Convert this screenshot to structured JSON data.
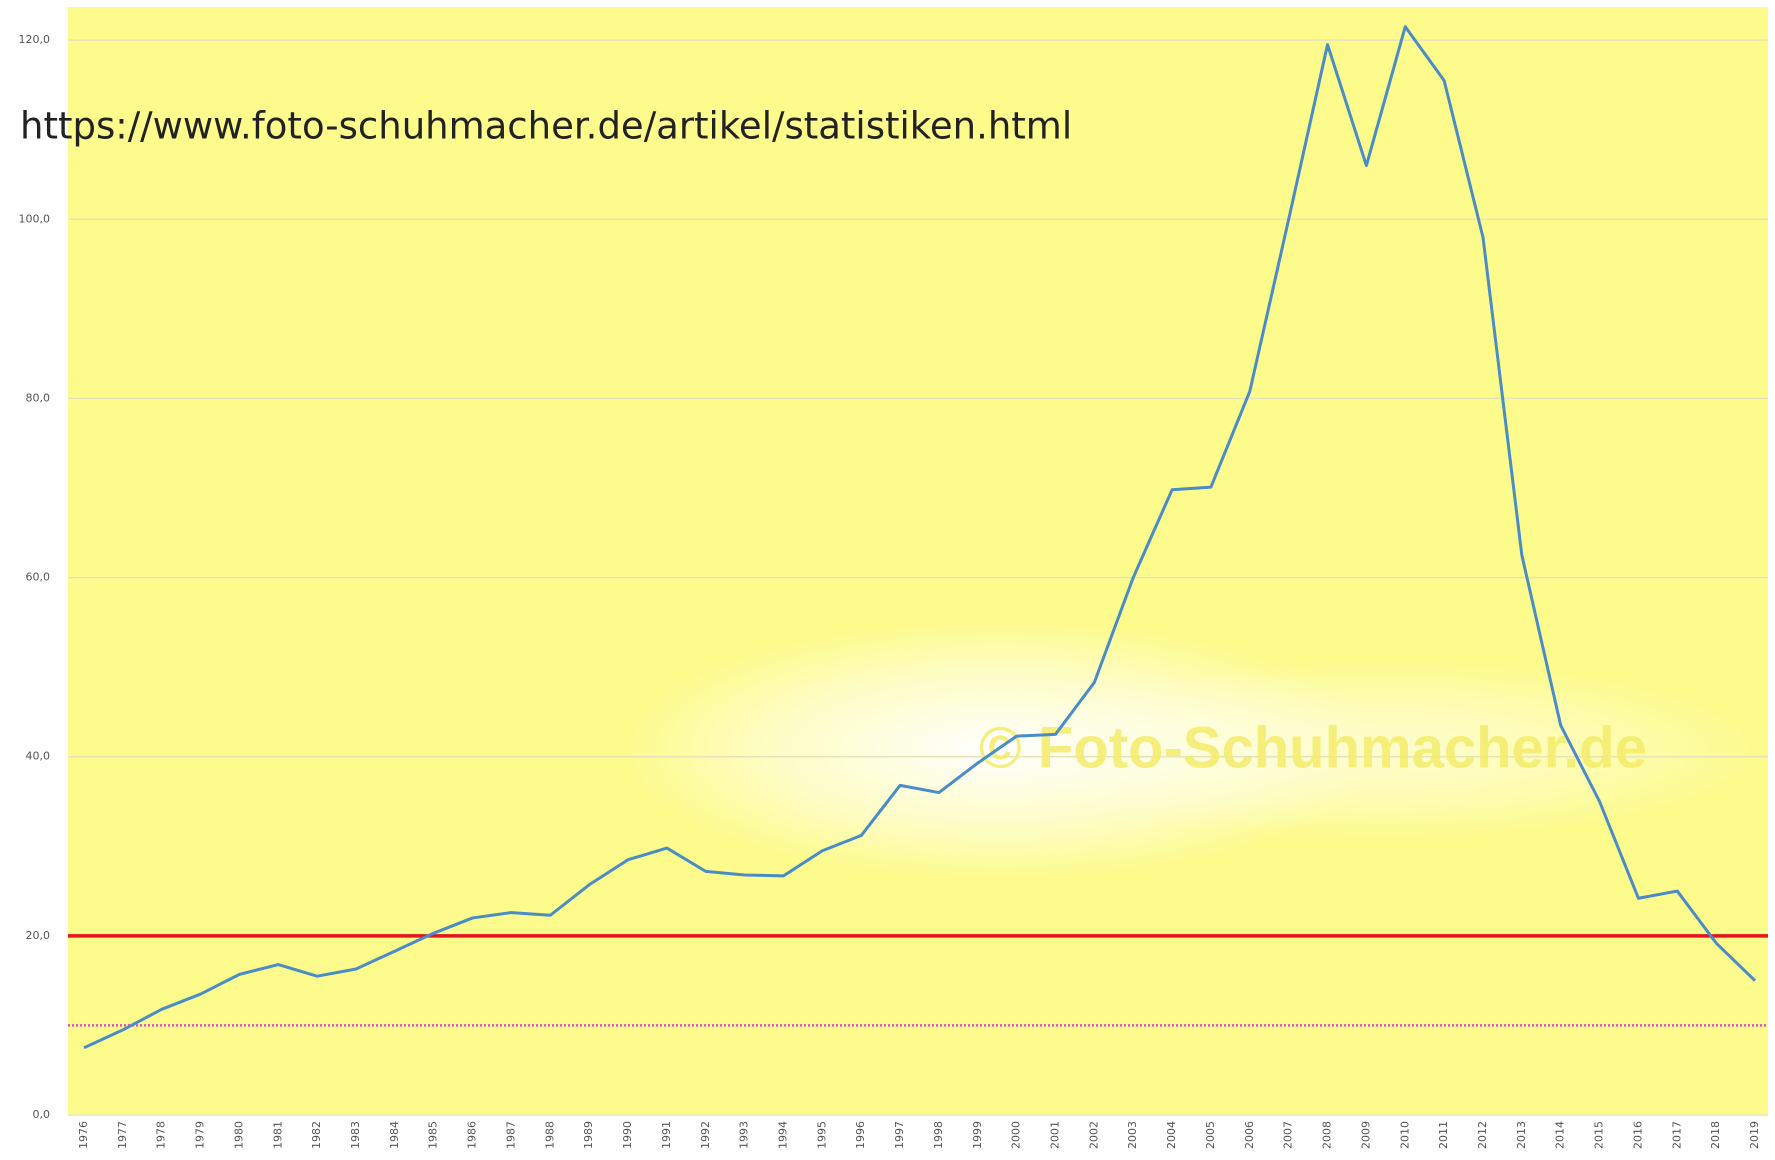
{
  "chart_data": {
    "type": "line",
    "categories": [
      "1976",
      "1977",
      "1978",
      "1979",
      "1980",
      "1981",
      "1982",
      "1983",
      "1984",
      "1985",
      "1986",
      "1987",
      "1988",
      "1989",
      "1990",
      "1991",
      "1992",
      "1993",
      "1994",
      "1995",
      "1996",
      "1997",
      "1998",
      "1999",
      "2000",
      "2001",
      "2002",
      "2003",
      "2004",
      "2005",
      "2006",
      "2007",
      "2008",
      "2009",
      "2010",
      "2011",
      "2012",
      "2013",
      "2014",
      "2015",
      "2016",
      "2017",
      "2018",
      "2019"
    ],
    "series": [
      {
        "color": "#4a8cc6",
        "values": [
          7.5,
          9.5,
          11.8,
          13.5,
          15.7,
          16.8,
          15.5,
          16.3,
          18.3,
          20.3,
          22,
          22.6,
          22.3,
          25.7,
          28.5,
          29.8,
          27.2,
          26.8,
          26.7,
          29.5,
          31.2,
          36.8,
          36,
          39.3,
          42.3,
          42.5,
          48.3,
          60,
          69.8,
          70.1,
          80.8,
          100,
          119.5,
          106,
          121.5,
          115.5,
          98,
          62.5,
          43.5,
          35,
          24.2,
          25,
          19.2,
          15
        ]
      }
    ],
    "ylim": [
      0,
      123.7
    ],
    "yticks": [
      {
        "value": 0,
        "label": "0,0"
      },
      {
        "value": 20,
        "label": "20,0"
      },
      {
        "value": 40,
        "label": "40,0"
      },
      {
        "value": 60,
        "label": "60,0"
      },
      {
        "value": 80,
        "label": "80,0"
      },
      {
        "value": 100,
        "label": "100,0"
      },
      {
        "value": 120,
        "label": "120,0"
      }
    ],
    "grid": true,
    "reference_lines": [
      {
        "value": 20,
        "color": "#e3141c",
        "style": "solid"
      },
      {
        "value": 10,
        "color": "#e04cc8",
        "style": "dotted"
      }
    ],
    "background": "#fdfb8c",
    "watermark": "© Foto-Schuhmacher.de",
    "annotation": "https://www.foto-schuhmacher.de/artikel/statistiken.html"
  }
}
